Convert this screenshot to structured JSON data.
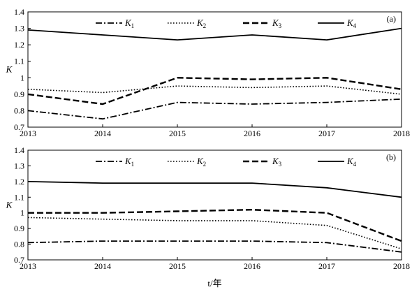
{
  "chart_data": [
    {
      "type": "line",
      "panel_label": "(a)",
      "x": [
        2013,
        2014,
        2015,
        2016,
        2017,
        2018
      ],
      "xlim": [
        2013,
        2018
      ],
      "ylim": [
        0.7,
        1.4
      ],
      "yticks": [
        "0.7",
        "0.8",
        "0.9",
        "1",
        "1.1",
        "1.2",
        "1.3",
        "1.4"
      ],
      "xticks": [
        "2013",
        "2014",
        "2015",
        "2016",
        "2017",
        "2018"
      ],
      "ylabel": "K",
      "xlabel": "",
      "legend": "top",
      "grid": false,
      "series": [
        {
          "name": "K",
          "sub": "1",
          "style": "dashdot",
          "values": [
            0.8,
            0.75,
            0.85,
            0.84,
            0.85,
            0.87
          ]
        },
        {
          "name": "K",
          "sub": "2",
          "style": "dotted",
          "values": [
            0.93,
            0.91,
            0.95,
            0.94,
            0.95,
            0.9
          ]
        },
        {
          "name": "K",
          "sub": "3",
          "style": "dashed",
          "values": [
            0.9,
            0.84,
            1.0,
            0.99,
            1.0,
            0.93
          ]
        },
        {
          "name": "K",
          "sub": "4",
          "style": "solid",
          "values": [
            1.29,
            1.26,
            1.23,
            1.26,
            1.23,
            1.3
          ]
        }
      ]
    },
    {
      "type": "line",
      "panel_label": "(b)",
      "x": [
        2013,
        2014,
        2015,
        2016,
        2017,
        2018
      ],
      "xlim": [
        2013,
        2018
      ],
      "ylim": [
        0.7,
        1.4
      ],
      "yticks": [
        "0.7",
        "0.8",
        "0.9",
        "1",
        "1.1",
        "1.2",
        "1.3",
        "1.4"
      ],
      "xticks": [
        "2013",
        "2014",
        "2015",
        "2016",
        "2017",
        "2018"
      ],
      "ylabel": "K",
      "xlabel": "t/年",
      "legend": "top",
      "grid": false,
      "series": [
        {
          "name": "K",
          "sub": "1",
          "style": "dashdot",
          "values": [
            0.81,
            0.82,
            0.82,
            0.82,
            0.81,
            0.75
          ]
        },
        {
          "name": "K",
          "sub": "2",
          "style": "dotted",
          "values": [
            0.97,
            0.96,
            0.95,
            0.95,
            0.92,
            0.77
          ]
        },
        {
          "name": "K",
          "sub": "3",
          "style": "dashed",
          "values": [
            1.0,
            1.0,
            1.01,
            1.02,
            1.0,
            0.82
          ]
        },
        {
          "name": "K",
          "sub": "4",
          "style": "solid",
          "values": [
            1.2,
            1.19,
            1.19,
            1.19,
            1.16,
            1.1
          ]
        }
      ]
    }
  ]
}
